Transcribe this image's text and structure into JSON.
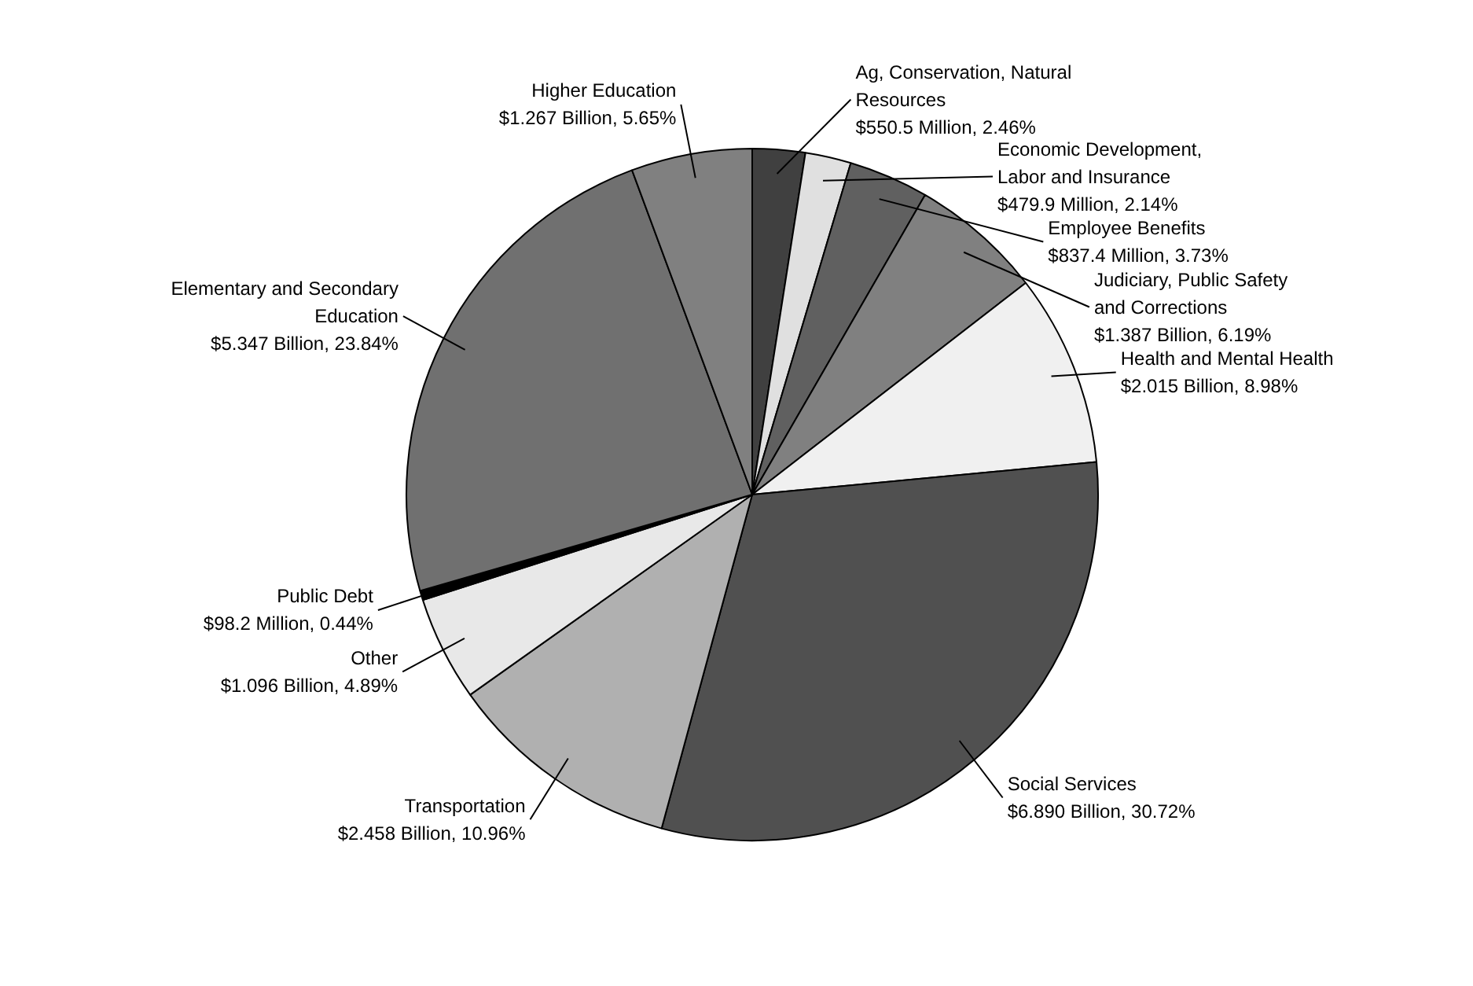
{
  "chart_data": {
    "type": "pie",
    "categories": [
      "Ag, Conservation, Natural Resources",
      "Economic Development, Labor and Insurance",
      "Employee Benefits",
      "Judiciary, Public Safety and Corrections",
      "Health and Mental Health",
      "Social Services",
      "Transportation",
      "Other",
      "Public Debt",
      "Elementary and Secondary Education",
      "Higher Education"
    ],
    "values": [
      2.46,
      2.14,
      3.73,
      6.19,
      8.98,
      30.72,
      10.96,
      4.89,
      0.44,
      23.84,
      5.65
    ],
    "value_labels": [
      "$550.5 Million, 2.46%",
      "$479.9 Million, 2.14%",
      "$837.4 Million, 3.73%",
      "$1.387 Billion, 6.19%",
      "$2.015 Billion, 8.98%",
      "$6.890 Billion, 30.72%",
      "$2.458 Billion, 10.96%",
      "$1.096 Billion, 4.89%",
      "$98.2 Million, 0.44%",
      "$5.347 Billion, 23.84%",
      "$1.267 Billion, 5.65%"
    ],
    "colors": [
      "#404040",
      "#e0e0e0",
      "#606060",
      "#808080",
      "#f0f0f0",
      "#505050",
      "#b0b0b0",
      "#e8e8e8",
      "#000000",
      "#707070",
      "#808080"
    ]
  }
}
